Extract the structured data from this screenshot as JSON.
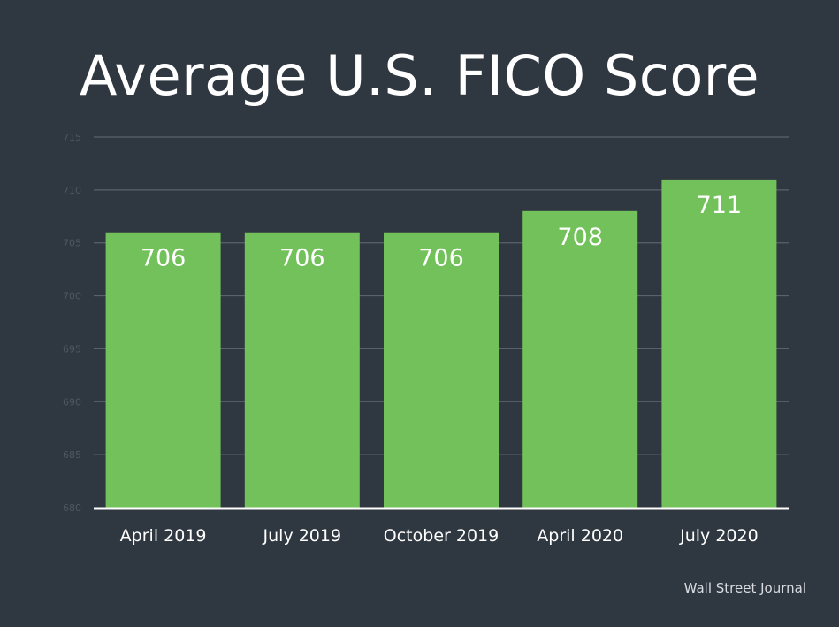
{
  "chart_data": {
    "type": "bar",
    "title": "Average U.S. FICO Score",
    "categories": [
      "April 2019",
      "July 2019",
      "October 2019",
      "April 2020",
      "July 2020"
    ],
    "values": [
      706,
      706,
      706,
      708,
      711
    ],
    "data_labels": [
      "706",
      "706",
      "706",
      "708",
      "711"
    ],
    "ylim": [
      680,
      715
    ],
    "yticks": [
      680,
      685,
      690,
      695,
      700,
      705,
      710,
      715
    ],
    "ytick_labels": [
      "680",
      "685",
      "690",
      "695",
      "700",
      "705",
      "710",
      "715"
    ],
    "xlabel": "",
    "ylabel": "",
    "grid": true,
    "legend": "none",
    "bar_color": "#72c15a",
    "source": "Wall Street Journal"
  },
  "colors": {
    "background": "#2f3740",
    "grid": "#5a626b",
    "axis": "#ffffff",
    "tick_label": "#4f5760",
    "text": "#ffffff"
  }
}
